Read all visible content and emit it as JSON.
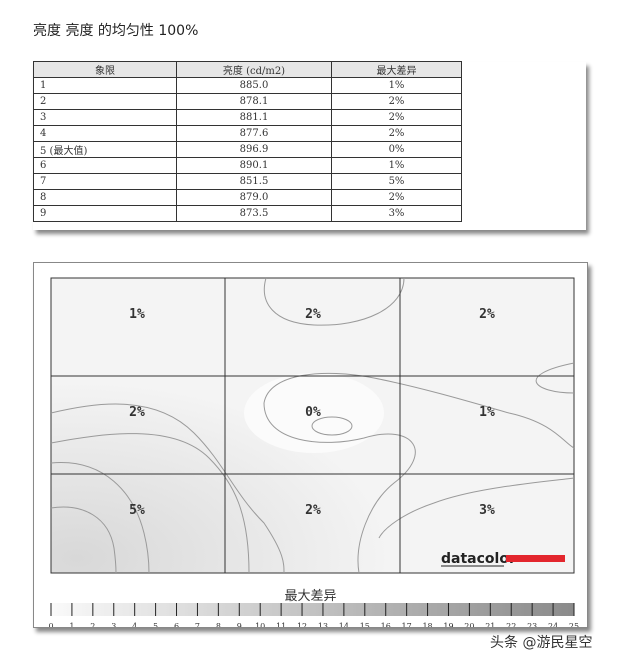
{
  "title": "亮度 亮度 的均匀性 100%",
  "table": {
    "headers": [
      "象限",
      "亮度 (cd/m2)",
      "最大差异"
    ],
    "rows": [
      [
        "1",
        "885.0",
        "1%"
      ],
      [
        "2",
        "878.1",
        "2%"
      ],
      [
        "3",
        "881.1",
        "2%"
      ],
      [
        "4",
        "877.6",
        "2%"
      ],
      [
        "5 (最大值)",
        "896.9",
        "0%"
      ],
      [
        "6",
        "890.1",
        "1%"
      ],
      [
        "7",
        "851.5",
        "5%"
      ],
      [
        "8",
        "879.0",
        "2%"
      ],
      [
        "9",
        "873.5",
        "3%"
      ]
    ]
  },
  "chart_data": {
    "type": "heatmap",
    "grid": [
      [
        "1%",
        "2%",
        "2%"
      ],
      [
        "2%",
        "0%",
        "1%"
      ],
      [
        "5%",
        "2%",
        "3%"
      ]
    ],
    "legend_title": "最大差异",
    "legend_ticks": [
      "0",
      "1",
      "2",
      "3",
      "4",
      "5",
      "6",
      "7",
      "8",
      "9",
      "10",
      "11",
      "12",
      "13",
      "14",
      "15",
      "16",
      "17",
      "18",
      "19",
      "20",
      "21",
      "22",
      "23",
      "24",
      "25"
    ],
    "legend_range": [
      0,
      25
    ]
  },
  "logo": "datacolor",
  "logo_color": "#e3262d",
  "watermark": "头条 @游民星空"
}
